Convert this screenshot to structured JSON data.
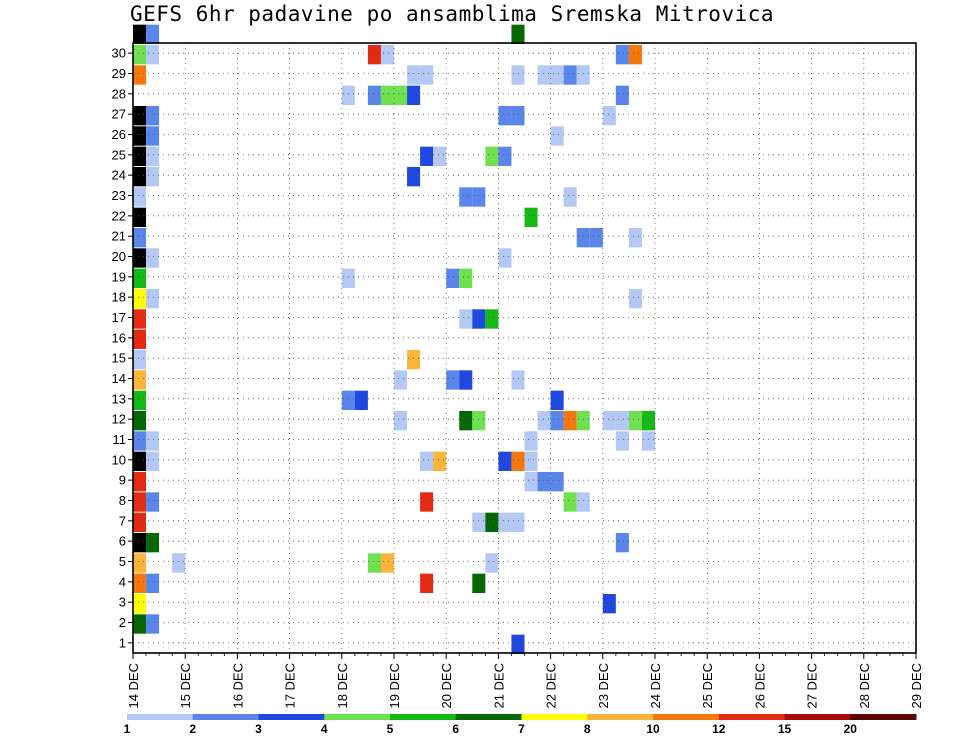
{
  "chart_data": {
    "type": "heatmap",
    "title": "GEFS 6hr padavine po ansamblima Sremska Mitrovica",
    "xlabel": "",
    "ylabel": "",
    "x_tick_labels": [
      "14 DEC",
      "15 DEC",
      "16 DEC",
      "17 DEC",
      "18 DEC",
      "19 DEC",
      "20 DEC",
      "21 DEC",
      "22 DEC",
      "23 DEC",
      "24 DEC",
      "25 DEC",
      "26 DEC",
      "27 DEC",
      "28 DEC",
      "29 DEC"
    ],
    "y_tick_labels": [
      "1",
      "2",
      "3",
      "4",
      "5",
      "6",
      "7",
      "8",
      "9",
      "10",
      "11",
      "12",
      "13",
      "14",
      "15",
      "16",
      "17",
      "18",
      "19",
      "20",
      "21",
      "22",
      "23",
      "24",
      "25",
      "26",
      "27",
      "28",
      "29",
      "30"
    ],
    "x_range_days": [
      0,
      15
    ],
    "y_range_members": [
      0,
      30
    ],
    "time_step_hours": 6,
    "grid": true,
    "colorbar": {
      "placement": "bottom",
      "bounds_labels": [
        "1",
        "2",
        "3",
        "4",
        "5",
        "6",
        "7",
        "8",
        "10",
        "12",
        "15",
        "20"
      ],
      "colors": [
        "#b4c8f5",
        "#5a86ec",
        "#1f48e0",
        "#6fe050",
        "#16b816",
        "#056805",
        "#ffff00",
        "#fbb43c",
        "#f7780a",
        "#e32a12",
        "#a80a0a",
        "#5a0505"
      ]
    },
    "cells": [
      [
        0,
        30,
        16
      ],
      [
        1,
        30,
        2
      ],
      [
        29,
        30,
        6
      ],
      [
        0,
        29,
        4
      ],
      [
        1,
        29,
        1
      ],
      [
        18,
        29,
        10
      ],
      [
        19,
        29,
        1
      ],
      [
        37,
        29,
        2
      ],
      [
        38,
        29,
        9
      ],
      [
        0,
        28,
        9
      ],
      [
        21,
        28,
        1
      ],
      [
        22,
        28,
        1
      ],
      [
        29,
        28,
        1
      ],
      [
        31,
        28,
        1
      ],
      [
        32,
        28,
        1
      ],
      [
        33,
        28,
        2
      ],
      [
        34,
        28,
        1
      ],
      [
        18,
        27,
        2
      ],
      [
        19,
        27,
        4
      ],
      [
        20,
        27,
        4
      ],
      [
        21,
        27,
        3
      ],
      [
        37,
        27,
        2
      ],
      [
        16,
        27,
        1
      ],
      [
        0,
        26,
        15
      ],
      [
        1,
        26,
        2
      ],
      [
        28,
        26,
        2
      ],
      [
        29,
        26,
        2
      ],
      [
        36,
        26,
        1
      ],
      [
        0,
        25,
        16
      ],
      [
        1,
        25,
        2
      ],
      [
        32,
        25,
        1
      ],
      [
        0,
        24,
        15
      ],
      [
        1,
        24,
        1
      ],
      [
        22,
        24,
        3
      ],
      [
        23,
        24,
        1
      ],
      [
        27,
        24,
        4
      ],
      [
        28,
        24,
        2
      ],
      [
        0,
        23,
        20
      ],
      [
        1,
        23,
        1
      ],
      [
        21,
        23,
        3
      ],
      [
        0,
        22,
        1
      ],
      [
        25,
        22,
        2
      ],
      [
        26,
        22,
        2
      ],
      [
        33,
        22,
        1
      ],
      [
        0,
        21,
        15
      ],
      [
        30,
        21,
        5
      ],
      [
        0,
        20,
        2
      ],
      [
        34,
        20,
        2
      ],
      [
        35,
        20,
        2
      ],
      [
        38,
        20,
        1
      ],
      [
        0,
        19,
        15
      ],
      [
        1,
        19,
        1
      ],
      [
        28,
        19,
        1
      ],
      [
        0,
        18,
        5
      ],
      [
        16,
        18,
        1
      ],
      [
        24,
        18,
        2
      ],
      [
        25,
        18,
        4
      ],
      [
        0,
        17,
        7
      ],
      [
        1,
        17,
        1
      ],
      [
        38,
        17,
        1
      ],
      [
        0,
        16,
        10
      ],
      [
        25,
        16,
        1
      ],
      [
        26,
        16,
        3
      ],
      [
        27,
        16,
        5
      ],
      [
        0,
        15,
        10
      ],
      [
        0,
        14,
        1
      ],
      [
        21,
        14,
        8
      ],
      [
        0,
        13,
        8
      ],
      [
        20,
        13,
        1
      ],
      [
        24,
        13,
        2
      ],
      [
        25,
        13,
        3
      ],
      [
        29,
        13,
        1
      ],
      [
        0,
        12,
        5
      ],
      [
        16,
        12,
        2
      ],
      [
        17,
        12,
        3
      ],
      [
        32,
        12,
        3
      ],
      [
        0,
        11,
        6
      ],
      [
        20,
        11,
        1
      ],
      [
        25,
        11,
        6
      ],
      [
        26,
        11,
        4
      ],
      [
        31,
        11,
        1
      ],
      [
        32,
        11,
        2
      ],
      [
        33,
        11,
        9
      ],
      [
        34,
        11,
        4
      ],
      [
        36,
        11,
        1
      ],
      [
        37,
        11,
        1
      ],
      [
        38,
        11,
        4
      ],
      [
        39,
        11,
        5
      ],
      [
        0,
        10,
        2
      ],
      [
        1,
        10,
        1
      ],
      [
        30,
        10,
        1
      ],
      [
        37,
        10,
        1
      ],
      [
        39,
        10,
        1
      ],
      [
        0,
        9,
        15
      ],
      [
        1,
        9,
        1
      ],
      [
        22,
        9,
        1
      ],
      [
        23,
        9,
        8
      ],
      [
        28,
        9,
        3
      ],
      [
        29,
        9,
        9
      ],
      [
        30,
        9,
        1
      ],
      [
        0,
        8,
        10
      ],
      [
        30,
        8,
        1
      ],
      [
        31,
        8,
        2
      ],
      [
        32,
        8,
        2
      ],
      [
        0,
        7,
        10
      ],
      [
        1,
        7,
        2
      ],
      [
        22,
        7,
        10
      ],
      [
        33,
        7,
        4
      ],
      [
        34,
        7,
        1
      ],
      [
        0,
        6,
        10
      ],
      [
        26,
        6,
        1
      ],
      [
        27,
        6,
        6
      ],
      [
        28,
        6,
        1
      ],
      [
        29,
        6,
        1
      ],
      [
        0,
        5,
        16
      ],
      [
        1,
        5,
        6
      ],
      [
        37,
        5,
        2
      ],
      [
        0,
        4,
        8
      ],
      [
        3,
        4,
        1
      ],
      [
        18,
        4,
        4
      ],
      [
        19,
        4,
        8
      ],
      [
        27,
        4,
        1
      ],
      [
        0,
        3,
        9
      ],
      [
        1,
        3,
        2
      ],
      [
        22,
        3,
        10
      ],
      [
        26,
        3,
        6
      ],
      [
        0,
        2,
        7
      ],
      [
        36,
        2,
        3
      ],
      [
        0,
        1,
        6
      ],
      [
        1,
        1,
        2
      ],
      [
        29,
        0,
        3
      ]
    ]
  }
}
